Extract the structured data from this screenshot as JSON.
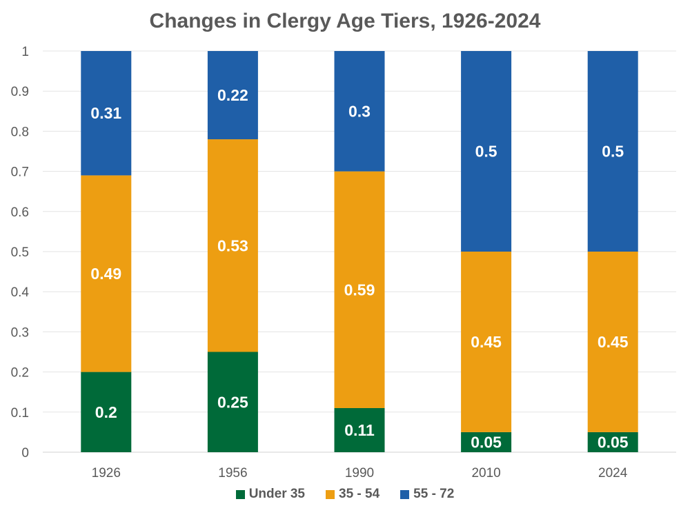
{
  "chart_data": {
    "type": "bar",
    "stacked": true,
    "title": "Changes in Clergy Age Tiers, 1926-2024",
    "xlabel": "",
    "ylabel": "",
    "categories": [
      "1926",
      "1956",
      "1990",
      "2010",
      "2024"
    ],
    "series": [
      {
        "name": "Under 35",
        "color": "#006A39",
        "values": [
          0.2,
          0.25,
          0.11,
          0.05,
          0.05
        ]
      },
      {
        "name": "35 - 54",
        "color": "#ED9E12",
        "values": [
          0.49,
          0.53,
          0.59,
          0.45,
          0.45
        ]
      },
      {
        "name": "55 - 72",
        "color": "#1F5FA8",
        "values": [
          0.31,
          0.22,
          0.3,
          0.5,
          0.5
        ]
      }
    ],
    "ylim": [
      0,
      1
    ],
    "yticks": [
      "0",
      "0.1",
      "0.2",
      "0.3",
      "0.4",
      "0.5",
      "0.6",
      "0.7",
      "0.8",
      "0.9",
      "1"
    ],
    "grid": true,
    "legend_position": "bottom",
    "data_labels": true
  }
}
